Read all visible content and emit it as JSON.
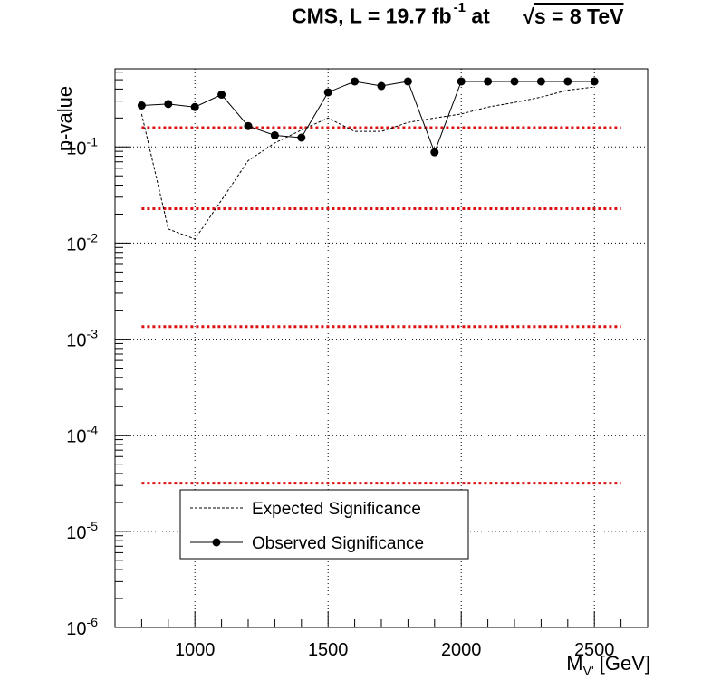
{
  "header": {
    "title_main": "CMS, L = 19.7 fb",
    "title_sup": "-1",
    "title_at": "at",
    "sqrt_symbol": "√",
    "title_energy": "s = 8 TeV"
  },
  "axes": {
    "ylabel": "p-value",
    "xlabel_main": "M",
    "xlabel_sub": "V'",
    "xlabel_unit": "[GeV]"
  },
  "chart_data": {
    "type": "line",
    "x_range": [
      700,
      2700
    ],
    "y_range": [
      1e-06,
      0.65
    ],
    "y_log": true,
    "grid": true,
    "x_ticks": [
      {
        "value": 1000,
        "label": "1000"
      },
      {
        "value": 1500,
        "label": "1500"
      },
      {
        "value": 2000,
        "label": "2000"
      },
      {
        "value": 2500,
        "label": "2500"
      }
    ],
    "y_ticks": [
      {
        "value": 1e-06,
        "base": "10",
        "exp": "-6"
      },
      {
        "value": 1e-05,
        "base": "10",
        "exp": "-5"
      },
      {
        "value": 0.0001,
        "base": "10",
        "exp": "-4"
      },
      {
        "value": 0.001,
        "base": "10",
        "exp": "-3"
      },
      {
        "value": 0.01,
        "base": "10",
        "exp": "-2"
      },
      {
        "value": 0.1,
        "base": "10",
        "exp": "-1"
      }
    ],
    "sigma_lines": [
      0.1587,
      0.02275,
      0.00135,
      3.17e-05
    ],
    "series": [
      {
        "name": "Expected Significance",
        "style": "dashed",
        "x": [
          800,
          900,
          1000,
          1100,
          1200,
          1300,
          1400,
          1500,
          1600,
          1700,
          1800,
          1900,
          2000,
          2100,
          2200,
          2300,
          2400,
          2500
        ],
        "y": [
          0.22,
          0.014,
          0.011,
          0.028,
          0.072,
          0.11,
          0.15,
          0.2,
          0.145,
          0.145,
          0.18,
          0.2,
          0.22,
          0.26,
          0.29,
          0.33,
          0.39,
          0.42
        ]
      },
      {
        "name": "Observed Significance",
        "style": "solid-markers",
        "x": [
          800,
          900,
          1000,
          1100,
          1200,
          1300,
          1400,
          1500,
          1600,
          1700,
          1800,
          1900,
          2000,
          2100,
          2200,
          2300,
          2400,
          2500
        ],
        "y": [
          0.27,
          0.28,
          0.26,
          0.35,
          0.165,
          0.132,
          0.125,
          0.37,
          0.48,
          0.43,
          0.48,
          0.088,
          0.48,
          0.48,
          0.48,
          0.48,
          0.48,
          0.48
        ]
      }
    ],
    "legend": {
      "entries": [
        "Expected Significance",
        "Observed Significance"
      ],
      "placement": "bottom-left"
    },
    "colors": {
      "sigma_line": "#dd1111",
      "series": "#000000",
      "grid": "#000000"
    }
  }
}
